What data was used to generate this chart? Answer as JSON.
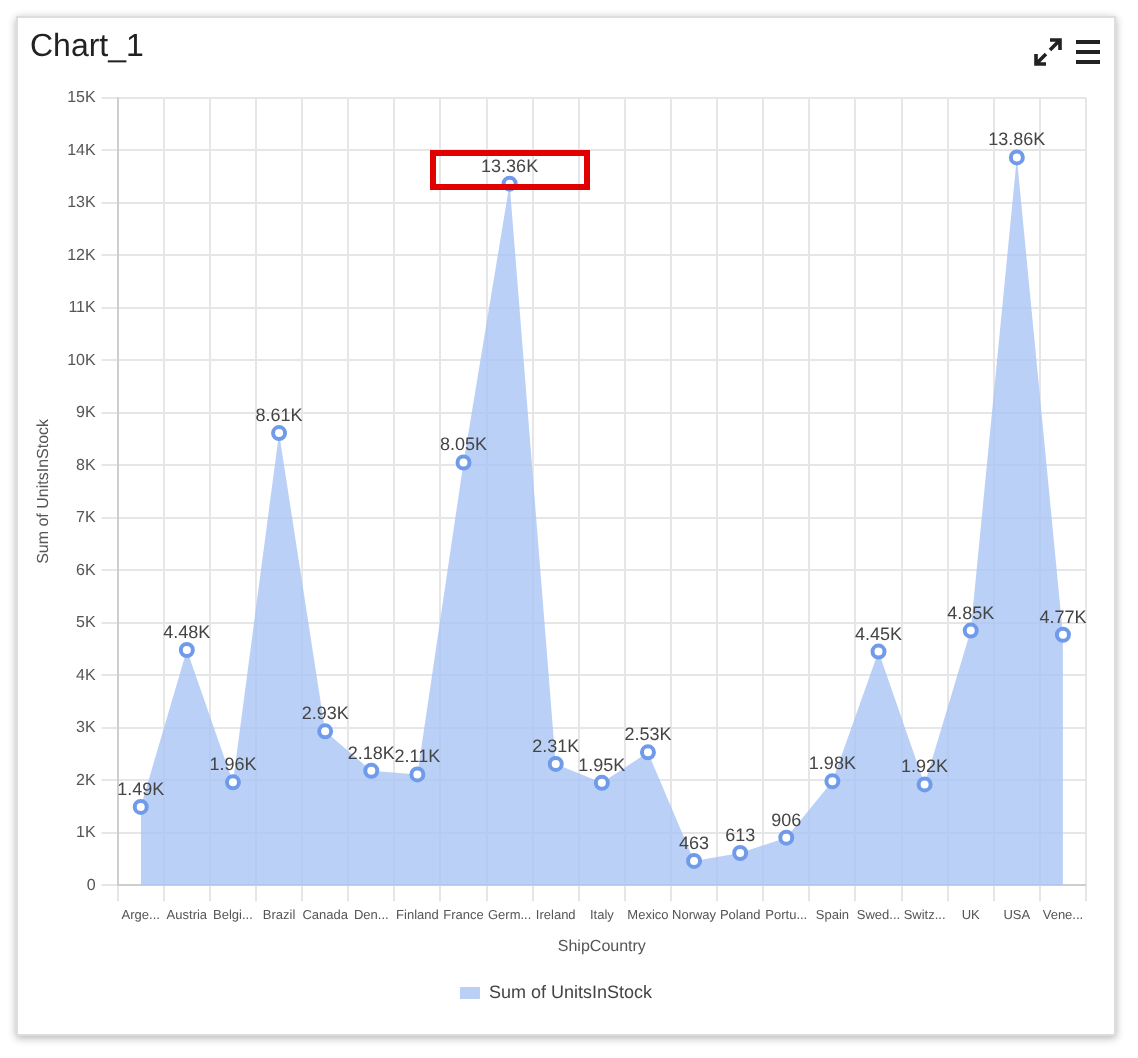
{
  "chart_data": {
    "type": "area",
    "title": "Chart_1",
    "xlabel": "ShipCountry",
    "ylabel": "Sum of UnitsInStock",
    "categories": [
      "Arge...",
      "Austria",
      "Belgi...",
      "Brazil",
      "Canada",
      "Den...",
      "Finland",
      "France",
      "Germ...",
      "Ireland",
      "Italy",
      "Mexico",
      "Norway",
      "Poland",
      "Portu...",
      "Spain",
      "Swed...",
      "Switz...",
      "UK",
      "USA",
      "Vene..."
    ],
    "series": [
      {
        "name": "Sum of UnitsInStock",
        "color": "#a9c4f5",
        "values": [
          1490,
          4480,
          1960,
          8610,
          2930,
          2180,
          2110,
          8050,
          13360,
          2310,
          1950,
          2530,
          463,
          613,
          906,
          1980,
          4450,
          1920,
          4850,
          13860,
          4770
        ],
        "value_labels": [
          "1.49K",
          "4.48K",
          "1.96K",
          "8.61K",
          "2.93K",
          "2.18K",
          "2.11K",
          "8.05K",
          "13.36K",
          "2.31K",
          "1.95K",
          "2.53K",
          "463",
          "613",
          "906",
          "1.98K",
          "4.45K",
          "1.92K",
          "4.85K",
          "13.86K",
          "4.77K"
        ]
      }
    ],
    "ylim": [
      0,
      15000
    ],
    "yticks": [
      0,
      {
        "value": 1000,
        "label": "1K"
      },
      {
        "value": 2000,
        "label": "2K"
      },
      {
        "value": 3000,
        "label": "3K"
      },
      {
        "value": 4000,
        "label": "4K"
      },
      {
        "value": 5000,
        "label": "5K"
      },
      {
        "value": 6000,
        "label": "6K"
      },
      {
        "value": 7000,
        "label": "7K"
      },
      {
        "value": 8000,
        "label": "8K"
      },
      {
        "value": 9000,
        "label": "9K"
      },
      {
        "value": 10000,
        "label": "10K"
      },
      {
        "value": 11000,
        "label": "11K"
      },
      {
        "value": 12000,
        "label": "12K"
      },
      {
        "value": 13000,
        "label": "13K"
      },
      {
        "value": 14000,
        "label": "14K"
      },
      {
        "value": 15000,
        "label": "15K"
      }
    ],
    "grid": true,
    "legend": "bottom",
    "marker": "circle"
  }
}
